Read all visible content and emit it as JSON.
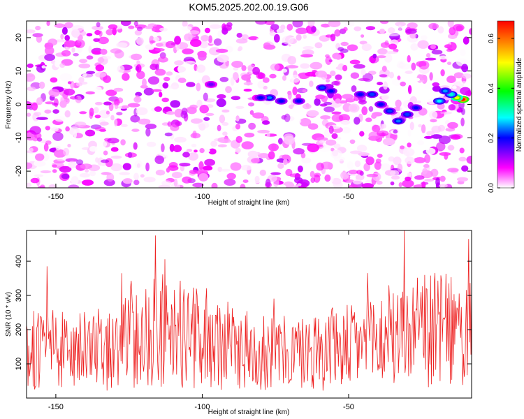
{
  "title": "KOM5.2025.202.00.19.G06",
  "chart_data": [
    {
      "type": "heatmap",
      "xlabel": "Height of straight line (km)",
      "ylabel": "Frequency (Hz)",
      "xlim": [
        -160,
        -8
      ],
      "ylim": [
        -25,
        25
      ],
      "xticks": [
        -150,
        -100,
        -50
      ],
      "yticks": [
        -20,
        -10,
        0,
        10,
        20
      ],
      "colorbar": {
        "label": "Normalized spectral amplitude",
        "range": [
          0,
          0.67
        ],
        "ticks": [
          0.0,
          0.2,
          0.4,
          0.6
        ],
        "colors": [
          "#ffffff",
          "#ff00ff",
          "#0000ff",
          "#00ffff",
          "#00ff00",
          "#ffff00",
          "#ff0000"
        ]
      },
      "background_range": [
        0.0,
        0.12
      ],
      "features": [
        {
          "x": -11,
          "y": 1.5,
          "value": 0.67
        },
        {
          "x": -13,
          "y": 2,
          "value": 0.5
        },
        {
          "x": -15,
          "y": 3,
          "value": 0.3
        },
        {
          "x": -17,
          "y": 4,
          "value": 0.25
        },
        {
          "x": -19,
          "y": 1,
          "value": 0.28
        },
        {
          "x": -27,
          "y": -1,
          "value": 0.2
        },
        {
          "x": -30,
          "y": -3,
          "value": 0.22
        },
        {
          "x": -33,
          "y": -5,
          "value": 0.24
        },
        {
          "x": -36,
          "y": -2,
          "value": 0.22
        },
        {
          "x": -39,
          "y": 0,
          "value": 0.2
        },
        {
          "x": -42,
          "y": 3,
          "value": 0.22
        },
        {
          "x": -46,
          "y": 3,
          "value": 0.2
        },
        {
          "x": -56,
          "y": 4,
          "value": 0.2
        },
        {
          "x": -59,
          "y": 5,
          "value": 0.22
        },
        {
          "x": -67,
          "y": 1,
          "value": 0.2
        },
        {
          "x": -73,
          "y": 1,
          "value": 0.2
        },
        {
          "x": -77,
          "y": 2,
          "value": 0.24
        },
        {
          "x": -80,
          "y": 2,
          "value": 0.2
        },
        {
          "x": -97,
          "y": 6,
          "value": 0.15
        }
      ]
    },
    {
      "type": "line",
      "xlabel": "Height of straight line (km)",
      "ylabel": "SNR (10 * v/v)",
      "xlim": [
        -160,
        -8
      ],
      "ylim": [
        0,
        490
      ],
      "xticks": [
        -150,
        -100,
        -50
      ],
      "yticks": [
        100,
        200,
        300,
        400
      ],
      "series": [
        {
          "color": "#ee2222",
          "x_step": 0.25,
          "envelope_x": [
            -160,
            -150,
            -145,
            -140,
            -135,
            -130,
            -125,
            -120,
            -115,
            -110,
            -105,
            -100,
            -95,
            -90,
            -85,
            -80,
            -75,
            -70,
            -65,
            -60,
            -55,
            -50,
            -45,
            -40,
            -35,
            -30,
            -25,
            -20,
            -15,
            -10,
            -8
          ],
          "envelope_mean": [
            140,
            140,
            135,
            135,
            130,
            145,
            175,
            185,
            200,
            195,
            180,
            170,
            160,
            150,
            140,
            135,
            130,
            130,
            135,
            140,
            145,
            150,
            160,
            170,
            175,
            185,
            195,
            200,
            195,
            175,
            190
          ],
          "peaks": [
            {
              "x": -116,
              "y": 475
            },
            {
              "x": -31,
              "y": 490
            },
            {
              "x": -9,
              "y": 465
            },
            {
              "x": -153,
              "y": 385
            }
          ]
        }
      ]
    }
  ]
}
